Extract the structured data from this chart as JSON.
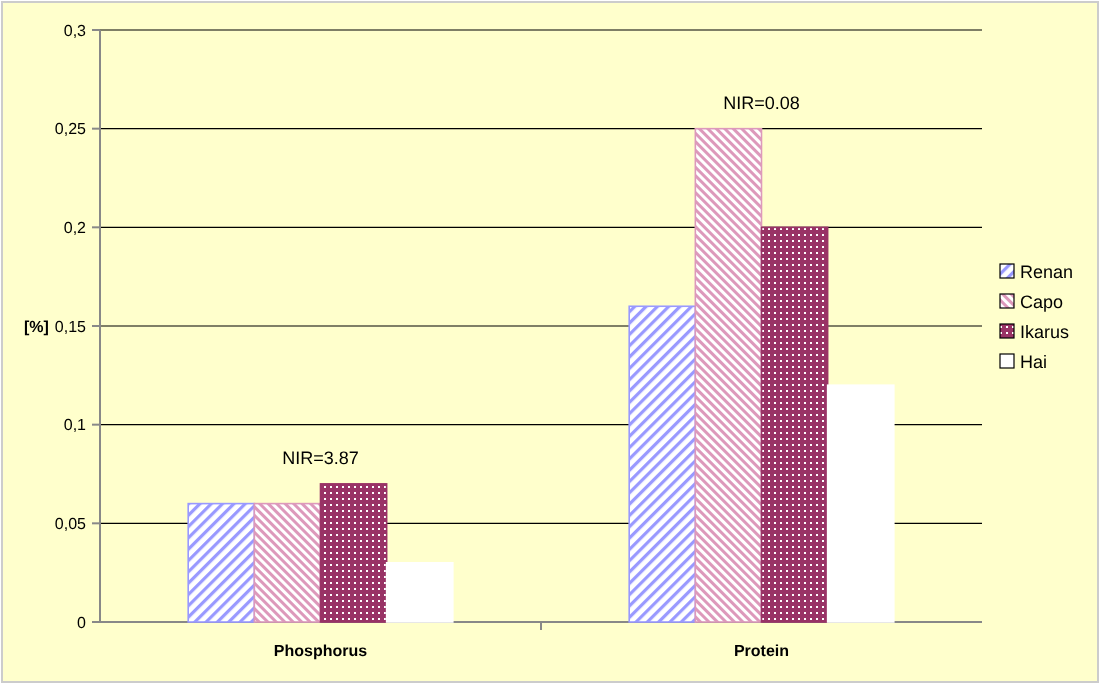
{
  "chart_data": {
    "type": "bar",
    "ylabel": "[%]",
    "categories": [
      "Phosphorus",
      "Protein"
    ],
    "series": [
      {
        "name": "Renan",
        "color": "#9999ff",
        "values": [
          0.06,
          0.16
        ]
      },
      {
        "name": "Capo",
        "color": "#dd99bb",
        "values": [
          0.06,
          0.25
        ]
      },
      {
        "name": "Ikarus",
        "color": "#993366",
        "values": [
          0.07,
          0.2
        ]
      },
      {
        "name": "Hai",
        "color": "#ffffff",
        "values": [
          0.03,
          0.12
        ]
      }
    ],
    "ylim": [
      0,
      0.3
    ],
    "yticks": [
      0,
      {
        "value": 0.05,
        "label": "0,05"
      },
      {
        "value": 0.1,
        "label": "0,1"
      },
      {
        "value": 0.15,
        "label": "0,15"
      },
      {
        "value": 0.2,
        "label": "0,2"
      },
      {
        "value": 0.25,
        "label": "0,25"
      },
      {
        "value": 0.3,
        "label": "0,3"
      }
    ],
    "grid": "y",
    "legend": "right",
    "annotations": [
      {
        "text": "NIR=3.87",
        "x": "Phosphorus",
        "y": 0.07
      },
      {
        "text": "NIR=0.08",
        "x": "Protein",
        "y": 0.25
      }
    ]
  }
}
